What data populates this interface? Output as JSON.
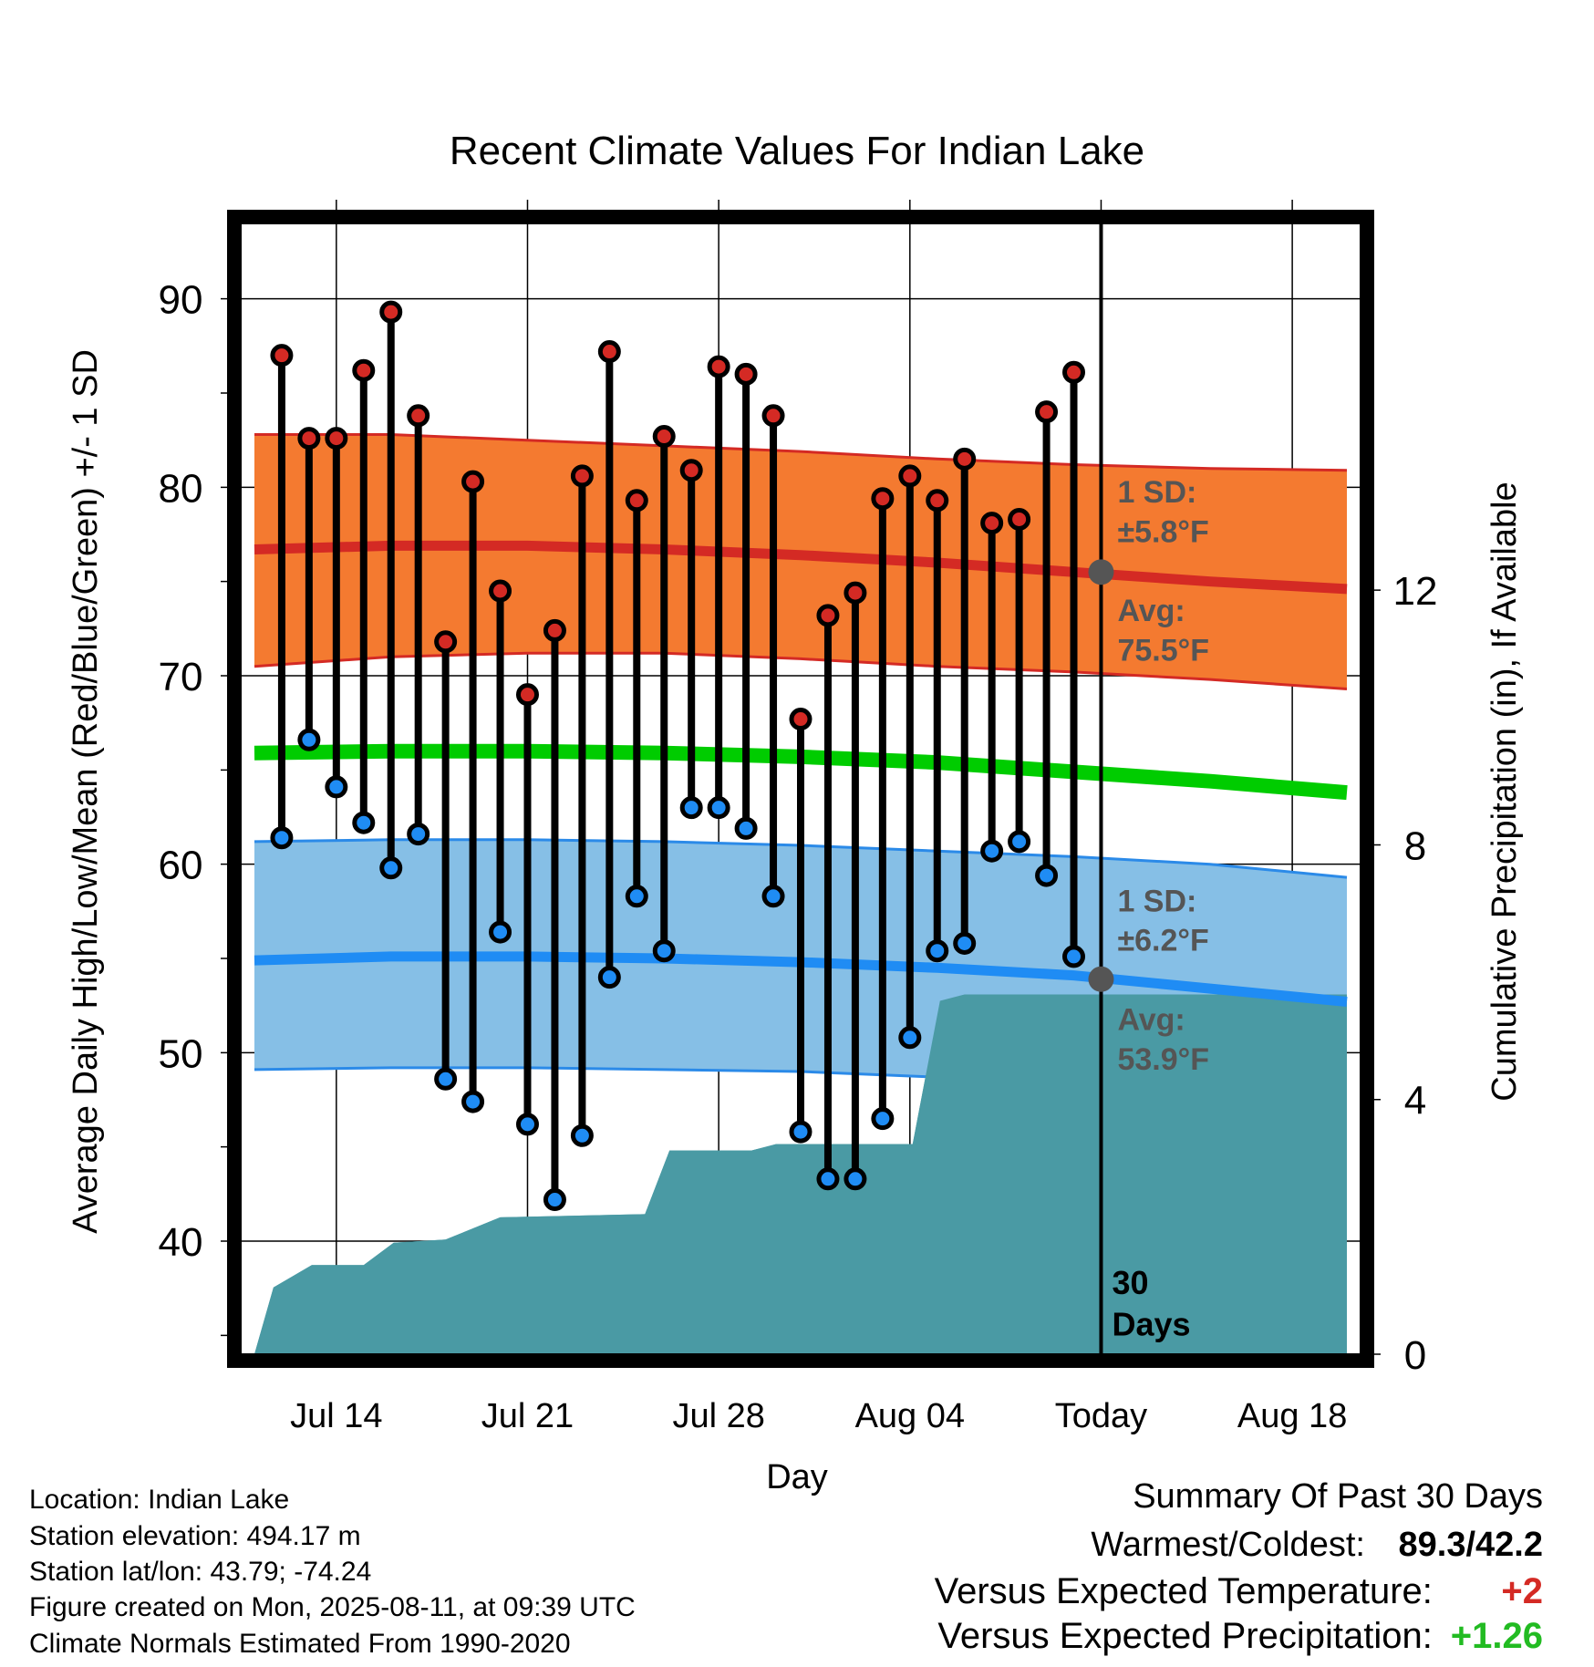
{
  "chart_data": {
    "type": "line",
    "title": "Recent Climate Values For Indian Lake",
    "xlabel": "Day",
    "ylabel_left": "Average Daily High/Low/Mean (Red/Blue/Green) +/- 1 SD",
    "ylabel_right": "Cumulative Precipitation (in), If Available",
    "x_tick_labels": [
      "Jul 14",
      "Jul 21",
      "Jul 28",
      "Aug 04",
      "Today",
      "Aug 18"
    ],
    "x_tick_days": [
      3,
      10,
      17,
      24,
      31,
      38
    ],
    "x_range_days": [
      -0.5,
      40.5
    ],
    "ylim_left": [
      34,
      94
    ],
    "yticks_left": [
      40,
      50,
      60,
      70,
      80,
      90
    ],
    "ylim_right": [
      0,
      17.76
    ],
    "yticks_right": [
      0,
      4,
      8,
      12
    ],
    "today_day": 31,
    "grid": true,
    "days_label": "30\nDays",
    "daily_high": [
      87.0,
      82.6,
      82.6,
      86.2,
      89.3,
      83.8,
      71.8,
      80.3,
      74.5,
      69.0,
      72.4,
      80.6,
      87.2,
      79.3,
      82.7,
      80.9,
      86.4,
      86.0,
      83.8,
      67.7,
      73.2,
      74.4,
      79.4,
      80.6,
      79.3,
      81.5,
      78.1,
      78.3,
      84.0,
      86.1
    ],
    "daily_low": [
      61.4,
      66.6,
      64.1,
      62.2,
      59.8,
      61.6,
      48.6,
      47.4,
      56.4,
      46.2,
      42.2,
      45.6,
      54.0,
      58.3,
      55.4,
      63.0,
      63.0,
      61.9,
      58.3,
      45.8,
      43.3,
      43.3,
      46.5,
      50.8,
      55.4,
      55.8,
      60.7,
      61.2,
      59.4,
      55.1
    ],
    "normal_high": {
      "days": [
        0,
        5,
        10,
        15,
        20,
        25,
        30,
        35,
        40
      ],
      "avg": [
        76.7,
        76.9,
        76.9,
        76.7,
        76.4,
        76.0,
        75.5,
        75.0,
        74.6
      ],
      "upper": [
        82.8,
        82.8,
        82.5,
        82.2,
        81.9,
        81.5,
        81.2,
        81.0,
        80.9
      ],
      "lower": [
        70.5,
        71.0,
        71.2,
        71.2,
        70.9,
        70.5,
        70.2,
        69.8,
        69.3
      ]
    },
    "normal_mean": {
      "days": [
        0,
        5,
        10,
        15,
        20,
        25,
        30,
        35,
        40
      ],
      "values": [
        65.9,
        66.0,
        66.0,
        65.9,
        65.7,
        65.4,
        64.9,
        64.4,
        63.8
      ]
    },
    "normal_low": {
      "days": [
        0,
        5,
        10,
        15,
        20,
        25,
        30,
        35,
        40
      ],
      "avg": [
        54.9,
        55.1,
        55.1,
        55.0,
        54.8,
        54.5,
        54.1,
        53.4,
        52.7
      ],
      "upper": [
        61.2,
        61.3,
        61.3,
        61.2,
        61.0,
        60.7,
        60.4,
        60.0,
        59.3
      ],
      "lower": [
        49.1,
        49.2,
        49.2,
        49.1,
        49.0,
        48.7,
        48.2,
        47.8,
        47.8
      ]
    },
    "cumulative_precip": {
      "days": [
        0,
        0.7,
        2.1,
        4.0,
        5.1,
        7.0,
        9.0,
        14.3,
        15.2,
        18.2,
        19.1,
        24.1,
        25.1,
        26.0,
        40.0
      ],
      "values": [
        0.0,
        1.05,
        1.4,
        1.4,
        1.75,
        1.8,
        2.15,
        2.2,
        3.2,
        3.2,
        3.3,
        3.3,
        5.55,
        5.65,
        5.65
      ]
    },
    "annotations": {
      "high_sd_title": "1 SD:",
      "high_sd_value": "±5.8°F",
      "high_avg_title": "Avg:",
      "high_avg_value": "75.5°F",
      "low_sd_title": "1 SD:",
      "low_sd_value": "±6.2°F",
      "low_avg_title": "Avg:",
      "low_avg_value": "53.9°F",
      "high_avg_today": 75.5,
      "low_avg_today": 53.9
    },
    "colors": {
      "high_band": "#f47a30",
      "high_band_edge": "#d42a24",
      "high_avg_line": "#d42a24",
      "mean_line": "#00cc00",
      "low_band": "#86bfe6",
      "low_band_edge": "#2b8ae8",
      "low_avg_line": "#1f8cf4",
      "precip_fill": "#4a9aa4",
      "high_dot": "#d42a24",
      "low_dot": "#1f8cf4",
      "today_dot": "#555555",
      "annotation_text": "#555555"
    }
  },
  "footer": {
    "location": "Location: Indian Lake",
    "elevation": "Station elevation: 494.17 m",
    "latlon": "Station lat/lon: 43.79; -74.24",
    "created": "Figure created on Mon, 2025-08-11, at 09:39 UTC",
    "normals": "Climate Normals Estimated From 1990-2020"
  },
  "summary": {
    "title": "Summary Of Past 30 Days",
    "warmest_label": "Warmest/Coldest:",
    "warmest_value": "89.3/42.2",
    "temp_label": "Versus Expected Temperature:",
    "temp_value": "+2",
    "temp_color": "#d42a24",
    "precip_label": "Versus Expected Precipitation:",
    "precip_value": "+1.26",
    "precip_color": "#22bb22"
  }
}
